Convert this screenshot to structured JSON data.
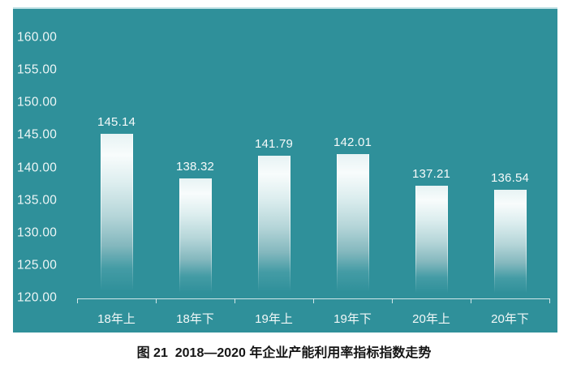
{
  "chart_data": {
    "type": "bar",
    "categories": [
      "18年上",
      "18年下",
      "19年上",
      "19年下",
      "20年上",
      "20年下"
    ],
    "values": [
      145.14,
      138.32,
      141.79,
      142.01,
      137.21,
      136.54
    ],
    "value_labels": [
      "145.14",
      "138.32",
      "141.79",
      "142.01",
      "137.21",
      "136.54"
    ],
    "y_tick_labels": [
      "160.00",
      "155.00",
      "150.00",
      "145.00",
      "140.00",
      "135.00",
      "130.00",
      "125.00",
      "120.00"
    ],
    "ylim": [
      120,
      160
    ],
    "y_step": 5,
    "grid": false,
    "legend_position": "none",
    "title": "",
    "xlabel": "",
    "ylabel": "",
    "colors": {
      "panel_background": "#2f909a",
      "bar_gradient_top": "#f8fcfc",
      "axis_line": "#e4f1f2",
      "tick_label_text": "#eef6f6",
      "caption_text": "#151515"
    }
  },
  "caption": {
    "text": "图 21  2018—2020 年企业产能利用率指标指数走势"
  }
}
